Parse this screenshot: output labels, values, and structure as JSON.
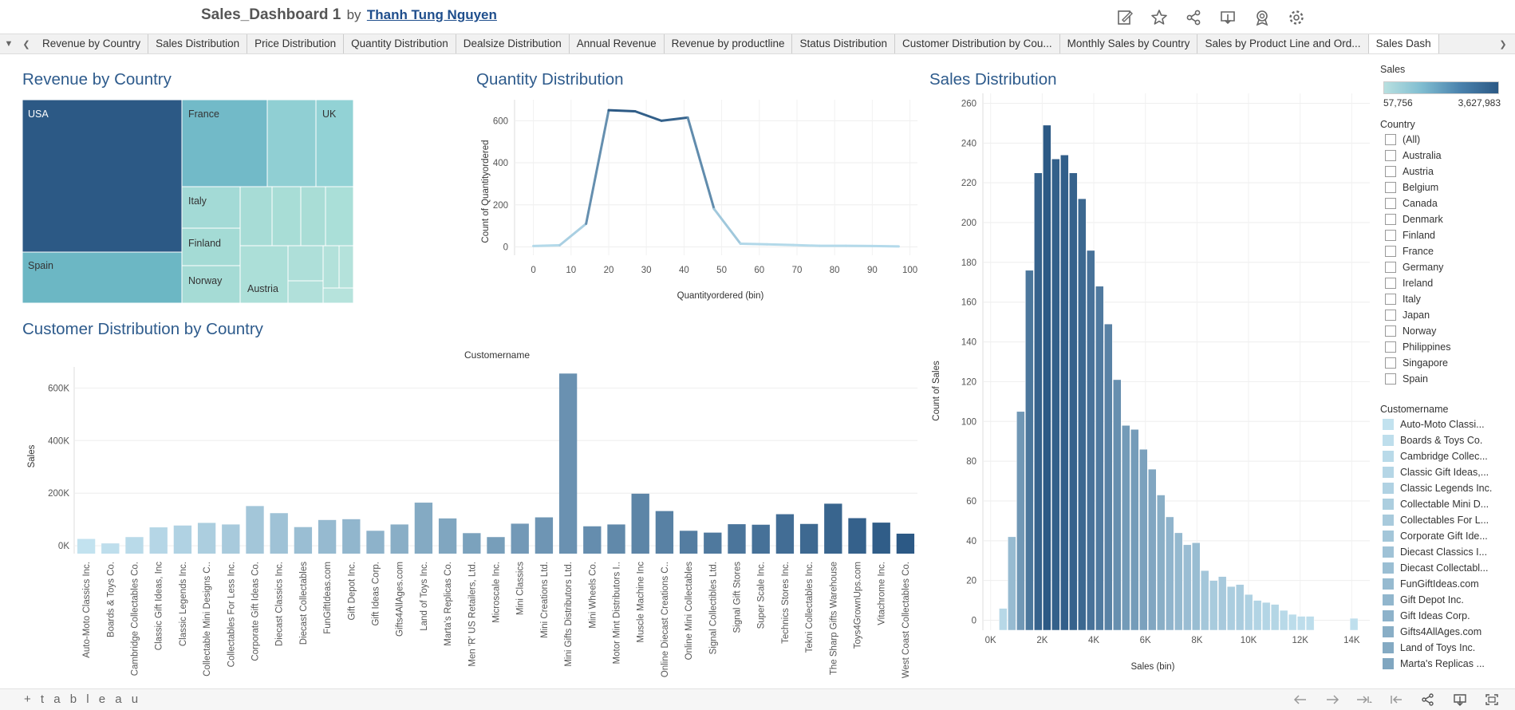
{
  "header": {
    "title": "Sales_Dashboard 1",
    "by": "by",
    "author": "Thanh Tung Nguyen",
    "icons": [
      "edit-icon",
      "favorite-star-icon",
      "share-icon",
      "download-icon",
      "badge-icon",
      "settings-gear-icon"
    ]
  },
  "tabs": [
    "Revenue by Country",
    "Sales Distribution",
    "Price Distribution",
    "Quantity Distribution",
    "Dealsize Distribution",
    "Annual Revenue",
    "Revenue by productline",
    "Status Distribution",
    "Customer Distribution by Cou...",
    "Monthly Sales by Country",
    "Sales by Product Line and Ord...",
    "Sales Dash"
  ],
  "active_tab": "Sales Dash",
  "colors": {
    "title": "#2e5b8c",
    "dark_blue": "#2c5985",
    "light_blue": "#c2e2ef",
    "teal": "#72bac8",
    "light_teal": "#a6dcd5"
  },
  "treemap": {
    "title": "Revenue by Country",
    "labels": [
      "USA",
      "France",
      "UK",
      "Spain",
      "Italy",
      "Finland",
      "Norway",
      "Austria"
    ]
  },
  "quantity": {
    "title": "Quantity Distribution",
    "chart_data": {
      "type": "line",
      "title": "Quantity Distribution",
      "xlabel": "Quantityordered (bin)",
      "ylabel": "Count of Quantityordered",
      "x_ticks": [
        "0",
        "10",
        "20",
        "30",
        "40",
        "50",
        "60",
        "70",
        "80",
        "90",
        "100"
      ],
      "y_ticks": [
        "0",
        "200",
        "400",
        "600"
      ],
      "xlim": [
        -5,
        102
      ],
      "ylim": [
        -40,
        700
      ],
      "x": [
        0,
        7,
        14,
        20,
        27,
        34,
        41,
        48,
        55,
        62,
        69,
        76,
        83,
        90,
        97
      ],
      "y": [
        4,
        8,
        110,
        650,
        645,
        600,
        615,
        180,
        15,
        12,
        9,
        5,
        5,
        4,
        2
      ]
    }
  },
  "customer": {
    "title": "Customer Distribution by Country",
    "chart_data": {
      "type": "bar",
      "title": "Customer Distribution by Country",
      "column_header": "Customername",
      "ylabel": "Sales",
      "y_ticks": [
        "0K",
        "200K",
        "400K",
        "600K"
      ],
      "ylim": [
        -30000,
        680000
      ],
      "categories": [
        "Auto-Moto Classics Inc.",
        "Boards & Toys Co.",
        "Cambridge Collectables Co.",
        "Classic Gift Ideas, Inc",
        "Classic Legends Inc.",
        "Collectable Mini Designs C..",
        "Collectables For Less Inc.",
        "Corporate Gift Ideas Co.",
        "Diecast Classics Inc.",
        "Diecast Collectables",
        "FunGiftIdeas.com",
        "Gift Depot Inc.",
        "Gift Ideas Corp.",
        "Gifts4AllAges.com",
        "Land of Toys Inc.",
        "Marta's Replicas Co.",
        "Men 'R' US Retailers, Ltd.",
        "Microscale Inc.",
        "Mini Classics",
        "Mini Creations Ltd.",
        "Mini Gifts Distributors Ltd.",
        "Mini Wheels Co.",
        "Motor Mint Distributors I..",
        "Muscle Machine Inc",
        "Online Diecast Creations C..",
        "Online Mini Collectables",
        "Signal Collectibles Ltd.",
        "Signal Gift Stores",
        "Super Scale Inc.",
        "Technics Stores Inc.",
        "Tekni Collectables Inc.",
        "The Sharp Gifts Warehouse",
        "Toys4GrownUps.com",
        "Vitachrome Inc.",
        "West Coast Collectables Co."
      ],
      "values": [
        26000,
        9000,
        33000,
        70000,
        77000,
        87000,
        81000,
        151000,
        124000,
        71000,
        98000,
        101000,
        57000,
        81000,
        164000,
        104000,
        48000,
        33000,
        84000,
        108000,
        655000,
        74000,
        81000,
        198000,
        132000,
        57000,
        50000,
        82000,
        80000,
        120000,
        83000,
        160000,
        105000,
        88000,
        46000
      ]
    }
  },
  "sales_dist": {
    "title": "Sales Distribution",
    "chart_data": {
      "type": "bar",
      "title": "Sales Distribution",
      "xlabel": "Sales (bin)",
      "ylabel": "Count of Sales",
      "x_ticks": [
        "0K",
        "2K",
        "4K",
        "6K",
        "8K",
        "10K",
        "12K",
        "14K"
      ],
      "y_ticks": [
        "0",
        "20",
        "40",
        "60",
        "80",
        "100",
        "120",
        "140",
        "160",
        "180",
        "200",
        "220",
        "240",
        "260"
      ],
      "xlim": [
        -300,
        14700
      ],
      "ylim": [
        -5,
        265
      ],
      "bin_width": 340,
      "bins": [
        500,
        840,
        1180,
        1520,
        1860,
        2200,
        2540,
        2880,
        3220,
        3560,
        3900,
        4240,
        4580,
        4920,
        5260,
        5600,
        5940,
        6280,
        6620,
        6960,
        7300,
        7640,
        7980,
        8320,
        8660,
        9000,
        9340,
        9680,
        10020,
        10360,
        10700,
        11040,
        11380,
        11720,
        12060,
        12400,
        14100
      ],
      "counts": [
        6,
        42,
        105,
        176,
        225,
        249,
        232,
        234,
        225,
        212,
        186,
        168,
        149,
        121,
        98,
        96,
        86,
        76,
        63,
        52,
        44,
        38,
        39,
        25,
        20,
        22,
        17,
        18,
        13,
        10,
        9,
        8,
        5,
        3,
        2,
        2,
        1
      ]
    }
  },
  "filters": {
    "sales_label": "Sales",
    "sales_min": "57,756",
    "sales_max": "3,627,983",
    "country_label": "Country",
    "countries": [
      "(All)",
      "Australia",
      "Austria",
      "Belgium",
      "Canada",
      "Denmark",
      "Finland",
      "France",
      "Germany",
      "Ireland",
      "Italy",
      "Japan",
      "Norway",
      "Philippines",
      "Singapore",
      "Spain"
    ],
    "customer_label": "Customername",
    "customers": [
      "Auto-Moto Classi...",
      "Boards & Toys Co.",
      "Cambridge Collec...",
      "Classic Gift Ideas,...",
      "Classic Legends Inc.",
      "Collectable Mini D...",
      "Collectables For L...",
      "Corporate Gift Ide...",
      "Diecast Classics I...",
      "Diecast Collectabl...",
      "FunGiftIdeas.com",
      "Gift Depot Inc.",
      "Gift Ideas Corp.",
      "Gifts4AllAges.com",
      "Land of Toys Inc.",
      "Marta's Replicas ..."
    ]
  },
  "footer": {
    "logo": "+ t a b l e a u"
  }
}
